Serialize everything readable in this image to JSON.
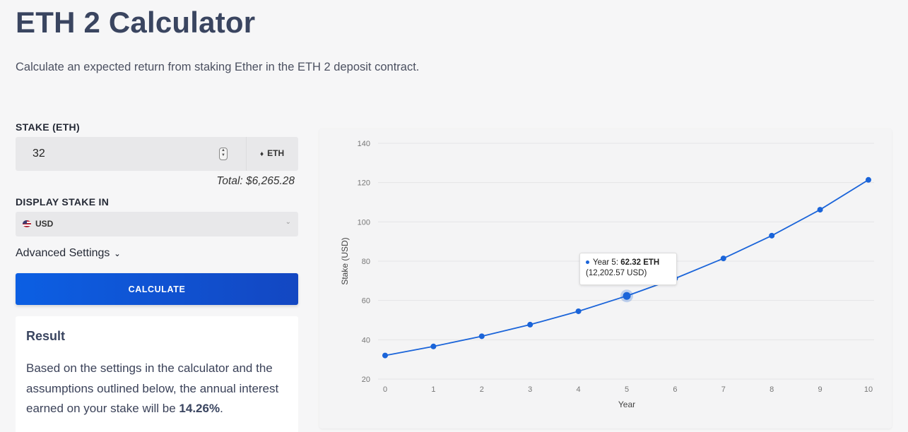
{
  "header": {
    "title": "ETH 2 Calculator",
    "subtitle": "Calculate an expected return from staking Ether in the ETH 2 deposit contract."
  },
  "stake": {
    "label": "STAKE (ETH)",
    "value": "32",
    "unit": "ETH",
    "total": "Total: $6,265.28"
  },
  "display": {
    "label": "DISPLAY STAKE IN",
    "selected": "USD"
  },
  "advanced": {
    "label": "Advanced Settings"
  },
  "calculate": {
    "label": "CALCULATE"
  },
  "result": {
    "title": "Result",
    "text": "Based on the settings in the calculator and the assumptions outlined below, the annual interest earned on your stake will be ",
    "rate": "14.26%",
    "period": "."
  },
  "tooltip": {
    "label": "Year 5: ",
    "value": "62.32 ETH",
    "sub": "(12,202.57 USD)"
  },
  "colors": {
    "accent": "#1a64d9",
    "button": "#0c5fe3"
  },
  "chart_data": {
    "type": "line",
    "xlabel": "Year",
    "ylabel": "Stake (USD)",
    "x": [
      0,
      1,
      2,
      3,
      4,
      5,
      6,
      7,
      8,
      9,
      10
    ],
    "values": [
      32,
      36.6,
      41.8,
      47.7,
      54.5,
      62.32,
      71.2,
      81.4,
      93.0,
      106.2,
      121.4
    ],
    "xlim": [
      0,
      10
    ],
    "ylim": [
      20,
      140
    ],
    "yticks": [
      20,
      40,
      60,
      80,
      100,
      120,
      140
    ],
    "highlight_index": 5,
    "grid": true
  }
}
